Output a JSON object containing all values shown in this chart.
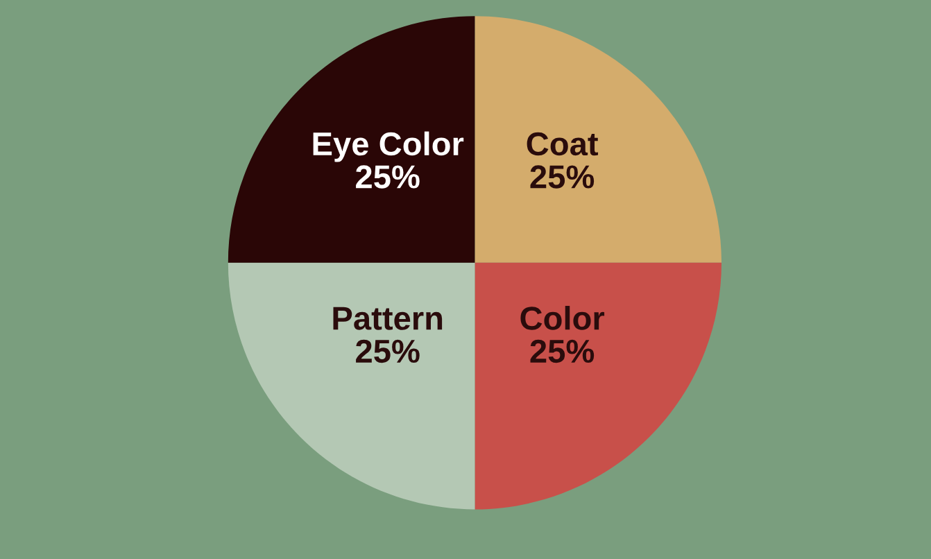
{
  "chart_data": {
    "type": "pie",
    "categories": [
      "Coat",
      "Color",
      "Pattern",
      "Eye Color"
    ],
    "values": [
      25,
      25,
      25,
      25
    ],
    "value_labels": [
      "25%",
      "25%",
      "25%",
      "25%"
    ],
    "colors": [
      "#d4ac6c",
      "#c8504a",
      "#b4c8b4",
      "#2a0606"
    ]
  }
}
